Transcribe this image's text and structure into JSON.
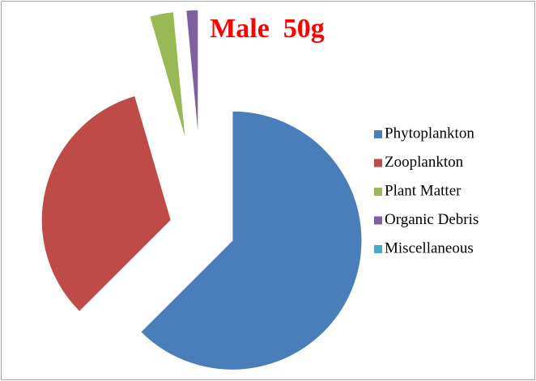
{
  "chart_data": {
    "type": "pie",
    "title": "Male  50g",
    "categories": [
      "Phytoplankton",
      "Zooplankton",
      "Plant Matter",
      "Organic Debris",
      "Miscellaneous"
    ],
    "values": [
      62.5,
      33,
      3,
      1.5,
      0
    ],
    "colors": [
      "#4a7ebb",
      "#be4b48",
      "#98b954",
      "#7d60a0",
      "#46aac5"
    ],
    "legend": "right"
  }
}
